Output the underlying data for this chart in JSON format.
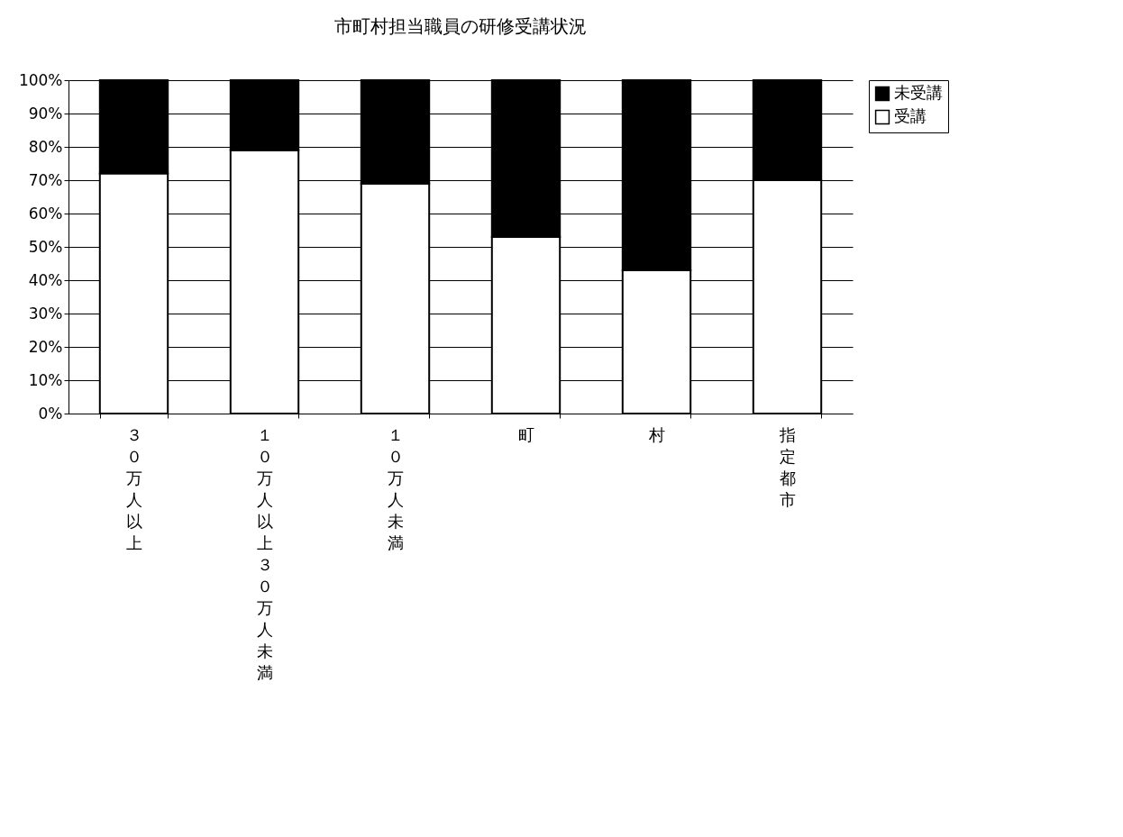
{
  "chart_data": {
    "type": "bar",
    "title": "市町村担当職員の研修受講状況",
    "stacked": true,
    "categories": [
      "３０万人以上",
      "１０万人以上３０万人未満",
      "１０万人未満",
      "町",
      "村",
      "指定都市"
    ],
    "series": [
      {
        "name": "受講",
        "color": "#ffffff",
        "values": [
          72,
          79,
          69,
          53,
          43,
          70
        ]
      },
      {
        "name": "未受講",
        "color": "#000000",
        "values": [
          28,
          21,
          31,
          47,
          57,
          30
        ]
      }
    ],
    "ylim": [
      0,
      100
    ],
    "yticks": [
      {
        "value": 0,
        "label": "0%"
      },
      {
        "value": 10,
        "label": "10%"
      },
      {
        "value": 20,
        "label": "20%"
      },
      {
        "value": 30,
        "label": "30%"
      },
      {
        "value": 40,
        "label": "40%"
      },
      {
        "value": 50,
        "label": "50%"
      },
      {
        "value": 60,
        "label": "60%"
      },
      {
        "value": 70,
        "label": "70%"
      },
      {
        "value": 80,
        "label": "80%"
      },
      {
        "value": 90,
        "label": "90%"
      },
      {
        "value": 100,
        "label": "100%"
      }
    ],
    "grid": "y",
    "legend": "right"
  }
}
